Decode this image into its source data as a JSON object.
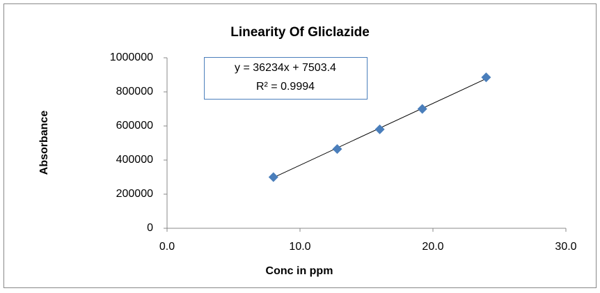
{
  "chart_data": {
    "type": "scatter",
    "title": "Linearity Of Gliclazide",
    "x_label": "Conc in ppm",
    "y_label": "Absorbance",
    "series": [
      {
        "name": "Absorbance",
        "color": "#4a7ebb",
        "x": [
          8,
          12.8,
          16,
          19.2,
          24
        ],
        "values": [
          300000,
          465000,
          580000,
          700000,
          885000
        ]
      }
    ],
    "trendline": {
      "slope": 36234,
      "intercept": 7503.4,
      "color": "#000000"
    },
    "annotation": [
      "y = 36234x + 7503.4",
      "R² = 0.9994"
    ],
    "xlim": [
      0,
      30
    ],
    "xticks": [
      {
        "value": 0,
        "label": "0.0"
      },
      {
        "value": 10,
        "label": "10.0"
      },
      {
        "value": 20,
        "label": "20.0"
      },
      {
        "value": 30,
        "label": "30.0"
      }
    ],
    "ylim": [
      0,
      1000000
    ],
    "yticks": [
      0,
      200000,
      400000,
      600000,
      800000,
      1000000
    ],
    "grid": false
  }
}
